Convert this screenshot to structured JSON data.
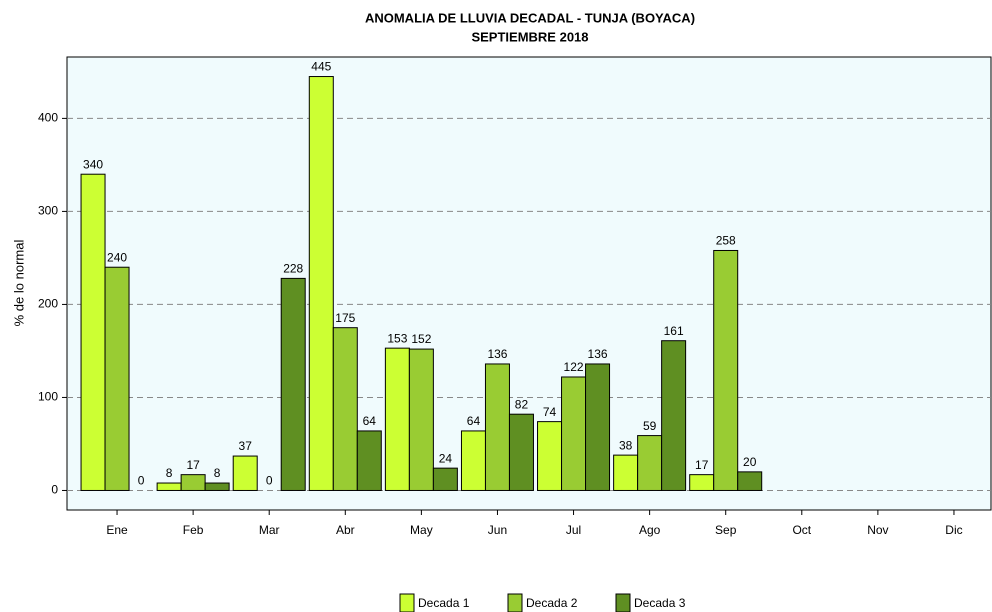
{
  "chart_data": {
    "type": "bar",
    "title": "ANOMALIA DE LLUVIA DECADAL - TUNJA  (BOYACA)",
    "subtitle": "SEPTIEMBRE 2018",
    "y_label": "% de lo normal",
    "categories": [
      "Ene",
      "Feb",
      "Mar",
      "Abr",
      "May",
      "Jun",
      "Jul",
      "Ago",
      "Sep",
      "Oct",
      "Nov",
      "Dic"
    ],
    "series": [
      {
        "name": "Decada 1",
        "color": "#ccff33",
        "values": [
          340,
          8,
          37,
          445,
          153,
          64,
          74,
          38,
          17,
          null,
          null,
          null
        ]
      },
      {
        "name": "Decada 2",
        "color": "#99cc33",
        "values": [
          240,
          17,
          0,
          175,
          152,
          136,
          122,
          59,
          258,
          null,
          null,
          null
        ]
      },
      {
        "name": "Decada 3",
        "color": "#5f8f22",
        "values": [
          0,
          8,
          228,
          64,
          24,
          82,
          136,
          161,
          20,
          null,
          null,
          null
        ]
      }
    ],
    "ylim": [
      -21,
      466
    ],
    "yticks": [
      0,
      100,
      200,
      300,
      400
    ],
    "grid": true,
    "legend": "bottom"
  }
}
